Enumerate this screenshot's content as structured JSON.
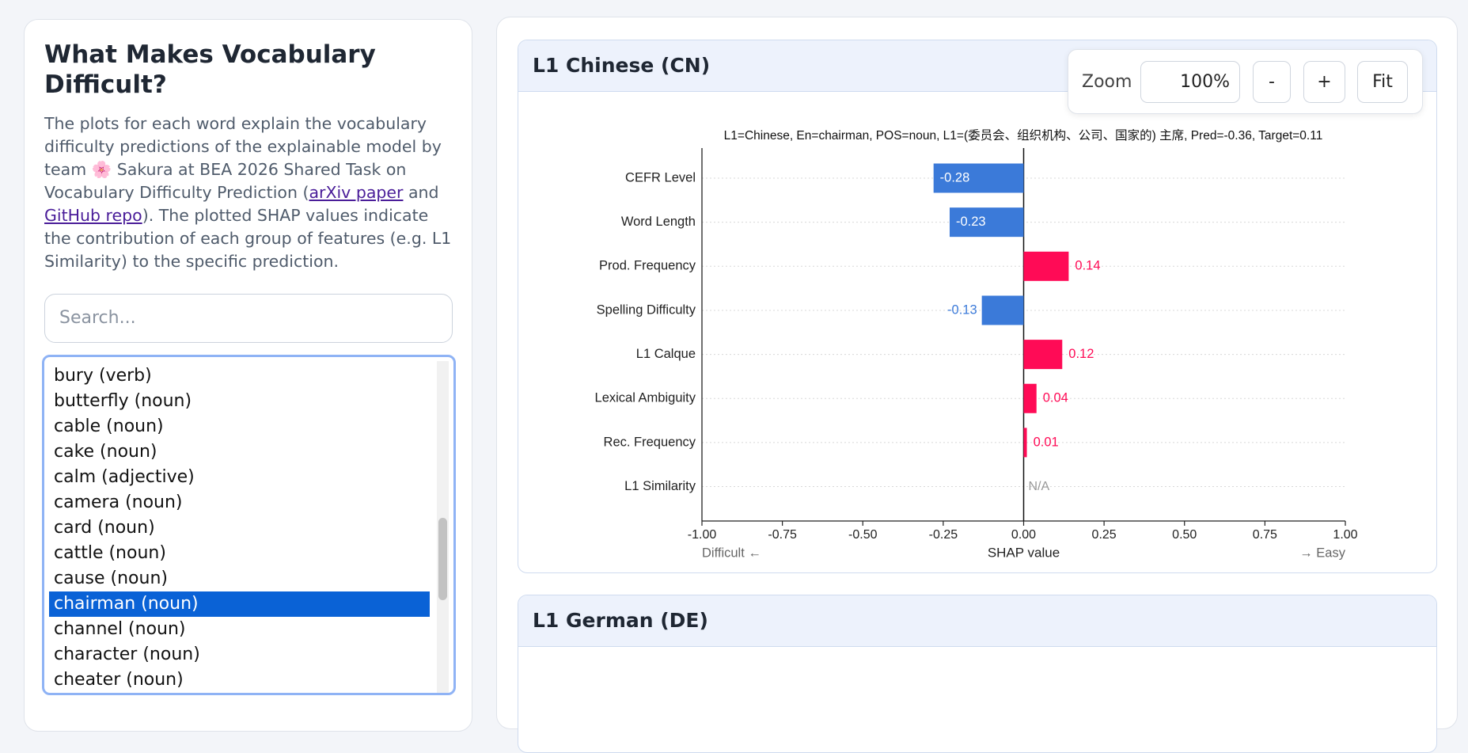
{
  "sidebar": {
    "title": "What Makes Vocabulary Difficult?",
    "description": {
      "text_1": "The plots for each word explain the vocabulary difficulty predictions of the explainable model by team 🌸 Sakura at BEA 2026 Shared Task on Vocabulary Difficulty Prediction (",
      "link_arxiv": "arXiv paper",
      "text_2": " and ",
      "link_github": "GitHub repo",
      "text_3": "). The plotted SHAP values indicate the contribution of each group of features (e.g. L1 Similarity) to the specific prediction."
    },
    "search_placeholder": "Search...",
    "words": [
      {
        "label": "bury (verb)"
      },
      {
        "label": "butterfly (noun)"
      },
      {
        "label": "cable (noun)"
      },
      {
        "label": "cake (noun)"
      },
      {
        "label": "calm (adjective)"
      },
      {
        "label": "camera (noun)"
      },
      {
        "label": "card (noun)"
      },
      {
        "label": "cattle (noun)"
      },
      {
        "label": "cause (noun)"
      },
      {
        "label": "chairman (noun)",
        "selected": true
      },
      {
        "label": "channel (noun)"
      },
      {
        "label": "character (noun)"
      },
      {
        "label": "cheater (noun)"
      }
    ]
  },
  "zoom": {
    "label": "Zoom",
    "value": "100%",
    "minus": "-",
    "plus": "+",
    "fit": "Fit"
  },
  "panels": [
    {
      "title": "L1 Chinese (CN)"
    },
    {
      "title": "L1 German (DE)"
    }
  ],
  "chart_data": {
    "type": "bar",
    "orientation": "horizontal",
    "title": "L1=Chinese, En=chairman, POS=noun, L1=(委员会、组织机构、公司、国家的) 主席, Pred=-0.36, Target=0.11",
    "categories": [
      "CEFR Level",
      "Word Length",
      "Prod. Frequency",
      "Spelling Difficulty",
      "L1 Calque",
      "Lexical Ambiguity",
      "Rec. Frequency",
      "L1 Similarity"
    ],
    "values": [
      -0.28,
      -0.23,
      0.14,
      -0.13,
      0.12,
      0.04,
      0.01,
      null
    ],
    "value_labels": [
      "-0.28",
      "-0.23",
      "0.14",
      "-0.13",
      "0.12",
      "0.04",
      "0.01",
      "N/A"
    ],
    "color_negative": "#3b7ad9",
    "color_positive": "#ff0b56",
    "xlim": [
      -1,
      1
    ],
    "xticks": [
      {
        "value": -1,
        "label": "-1.00"
      },
      {
        "value": -0.75,
        "label": "-0.75"
      },
      {
        "value": -0.5,
        "label": "-0.50"
      },
      {
        "value": -0.25,
        "label": "-0.25"
      },
      {
        "value": 0,
        "label": "0.00"
      },
      {
        "value": 0.25,
        "label": "0.25"
      },
      {
        "value": 0.5,
        "label": "0.50"
      },
      {
        "value": 0.75,
        "label": "0.75"
      },
      {
        "value": 1,
        "label": "1.00"
      }
    ],
    "xlabel": "SHAP value",
    "annotation_left": "Difficult ←",
    "annotation_right": "→ Easy"
  }
}
